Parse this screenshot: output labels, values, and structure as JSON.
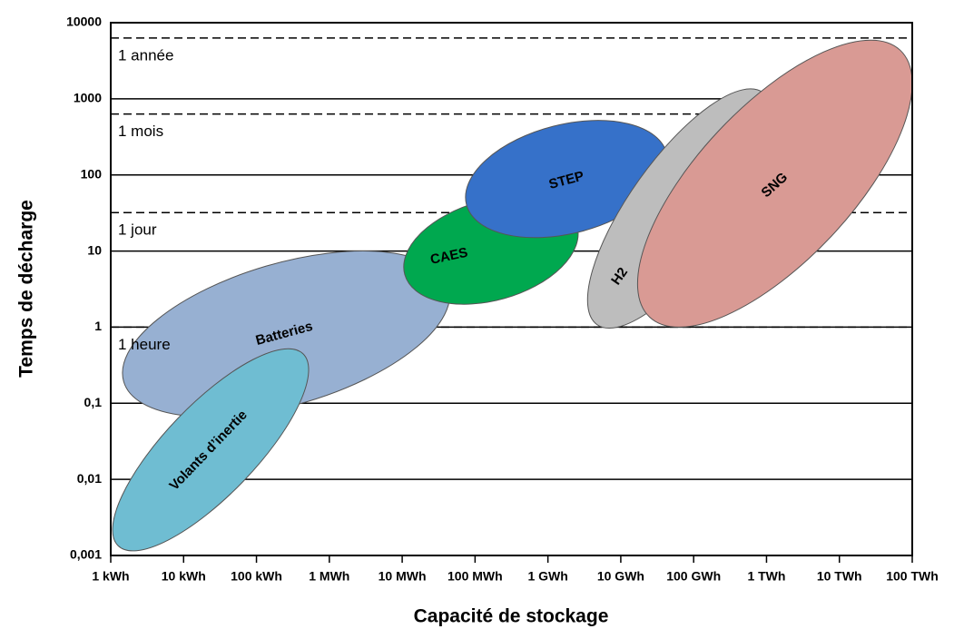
{
  "chart_data": {
    "type": "region",
    "xlabel": "Capacité de stockage",
    "ylabel": "Temps de décharge",
    "xscale": "log",
    "yscale": "log",
    "xlim": [
      1,
      100000000000
    ],
    "ylim": [
      0.001,
      10000
    ],
    "xticks": [
      {
        "value": 1,
        "label": "1 kWh"
      },
      {
        "value": 10,
        "label": "10 kWh"
      },
      {
        "value": 100,
        "label": "100 kWh"
      },
      {
        "value": 1000,
        "label": "1 MWh"
      },
      {
        "value": 10000,
        "label": "10 MWh"
      },
      {
        "value": 100000,
        "label": "100 MWh"
      },
      {
        "value": 1000000,
        "label": "1 GWh"
      },
      {
        "value": 10000000,
        "label": "10 GWh"
      },
      {
        "value": 100000000,
        "label": "100 GWh"
      },
      {
        "value": 1000000000,
        "label": "1 TWh"
      },
      {
        "value": 10000000000,
        "label": "10 TWh"
      },
      {
        "value": 100000000000,
        "label": "100 TWh"
      }
    ],
    "yticks": [
      {
        "value": 0.001,
        "label": "0,001"
      },
      {
        "value": 0.01,
        "label": "0,01"
      },
      {
        "value": 0.1,
        "label": "0,1"
      },
      1,
      10,
      100,
      1000,
      10000
    ],
    "grid": true,
    "hlines": [
      {
        "value": 6300,
        "label": "1 année"
      },
      {
        "value": 630,
        "label": "1 mois"
      },
      {
        "value": 32,
        "label": "1 jour"
      },
      {
        "value": 1,
        "label": "1 heure"
      }
    ],
    "regions": [
      {
        "name": "Batteries",
        "color": "#97b0d2",
        "x_range": [
          1.45,
          45000
        ],
        "y_range": [
          0.066,
          10
        ]
      },
      {
        "name": "Volants d’inertie",
        "color": "#6fbdd2",
        "x_range": [
          1.06,
          520
        ],
        "y_range": [
          0.00115,
          0.52
        ]
      },
      {
        "name": "CAES",
        "color": "#00a84f",
        "x_range": [
          10500,
          2600000
        ],
        "y_range": [
          2,
          52
        ]
      },
      {
        "name": "STEP",
        "color": "#3671c9",
        "x_range": [
          74000,
          44000000
        ],
        "y_range": [
          15,
          520
        ]
      },
      {
        "name": "H2",
        "color": "#bdbdbd",
        "x_range": [
          3500000,
          1200000000
        ],
        "y_range": [
          0.97,
          1350
        ]
      },
      {
        "name": "SNG",
        "color": "#d99a94",
        "x_range": [
          17000000,
          100000000000
        ],
        "y_range": [
          1,
          5900
        ]
      }
    ]
  }
}
